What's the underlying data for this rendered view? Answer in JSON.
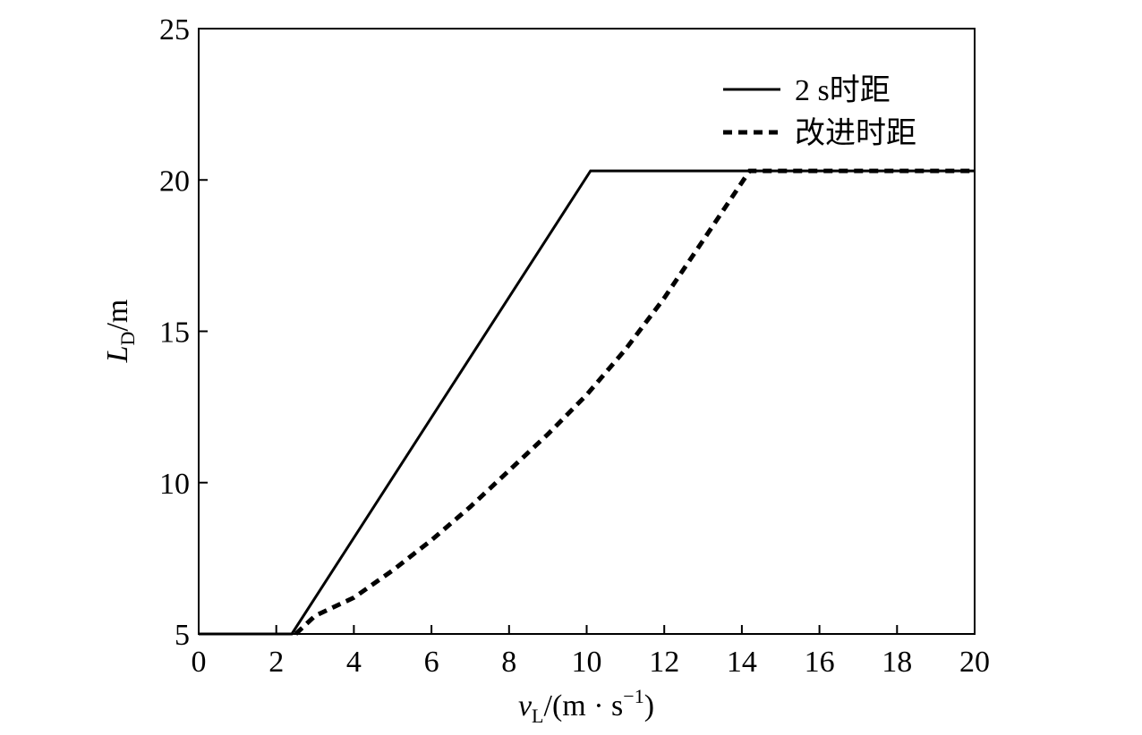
{
  "chart_data": {
    "type": "line",
    "x_label": [
      "v",
      "L",
      "/(m · s",
      "−1",
      ")"
    ],
    "y_label": [
      "L",
      "D",
      "/m"
    ],
    "series": [
      {
        "name": "2 s时距",
        "color": "#000000",
        "dash": "solid",
        "x": [
          0,
          2.4,
          10.1,
          20
        ],
        "values": [
          5,
          5,
          20.3,
          20.3
        ]
      },
      {
        "name": "改进时距",
        "color": "#000000",
        "dash": "dashed",
        "x": [
          2.5,
          3,
          4,
          5,
          6,
          7,
          8,
          9,
          10,
          11,
          12,
          13,
          14.2,
          20
        ],
        "values": [
          5,
          5.6,
          6.2,
          7.1,
          8.1,
          9.2,
          10.4,
          11.6,
          12.9,
          14.4,
          16.1,
          18.0,
          20.3,
          20.3
        ]
      }
    ],
    "xlim": [
      0,
      20
    ],
    "xticks": [
      0,
      2,
      4,
      6,
      8,
      10,
      12,
      14,
      16,
      18,
      20
    ],
    "ylim": [
      5,
      25
    ],
    "yticks": [
      5,
      10,
      15,
      20,
      25
    ],
    "legend": "upper right"
  }
}
